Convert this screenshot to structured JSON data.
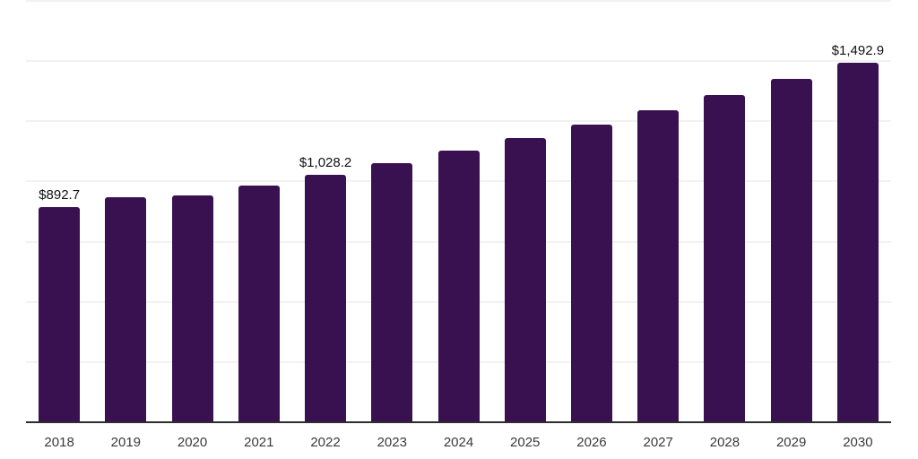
{
  "chart_data": {
    "type": "bar",
    "title": "",
    "xlabel": "",
    "ylabel": "",
    "categories": [
      "2018",
      "2019",
      "2020",
      "2021",
      "2022",
      "2023",
      "2024",
      "2025",
      "2026",
      "2027",
      "2028",
      "2029",
      "2030"
    ],
    "values": [
      892.7,
      936.0,
      941.0,
      984.0,
      1028.2,
      1077.0,
      1127.0,
      1180.0,
      1235.0,
      1297.0,
      1360.0,
      1425.0,
      1492.9
    ],
    "data_labels": [
      "$892.7",
      "",
      "",
      "",
      "$1,028.2",
      "",
      "",
      "",
      "",
      "",
      "",
      "",
      "$1,492.9"
    ],
    "ylim": [
      0,
      1750
    ],
    "gridline_step": 250,
    "grid": "horizontal-only",
    "legend": "none",
    "y_axis_labels_visible": false,
    "colors": {
      "bar": "#3A1150",
      "grid": "#f2f2f2",
      "axis": "#2d2d2d",
      "tick_label": "#3a3a3a",
      "value_label": "#111111",
      "background": "#ffffff"
    }
  }
}
